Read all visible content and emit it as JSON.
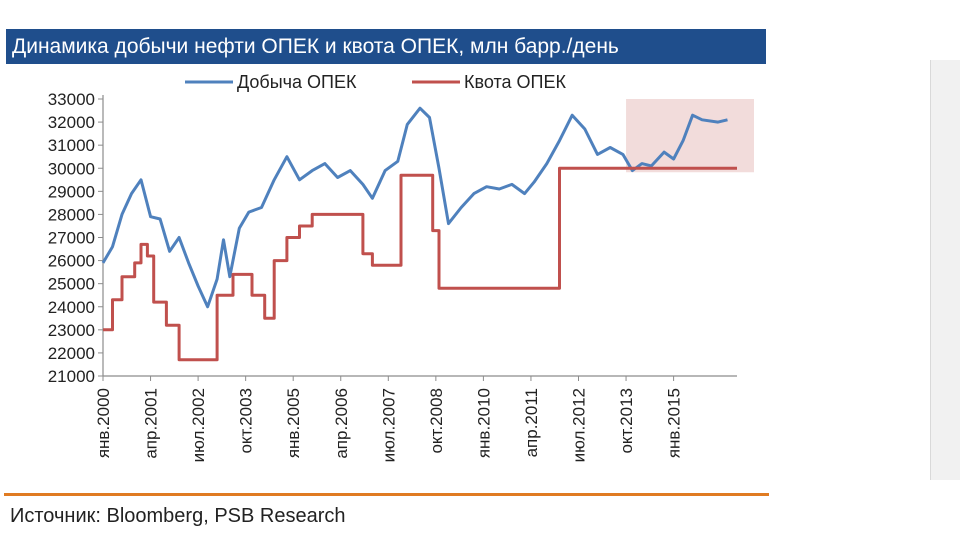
{
  "title": "Динамика добычи нефти ОПЕК и квота ОПЕК, млн барр./день",
  "source": "Источник: Bloomberg, PSB Research",
  "colors": {
    "title_bg": "#1f4e8c",
    "production": "#4f81bd",
    "quota": "#c0504d",
    "highlight": "#f2dcdb",
    "rule": "#e07b22"
  },
  "chart_data": {
    "type": "line",
    "title": "Динамика добычи нефти ОПЕК и квота ОПЕК, млн барр./день",
    "xlabel": "",
    "ylabel": "",
    "ylim": [
      21000,
      33000
    ],
    "xlim": [
      "2000-01",
      "2016-09"
    ],
    "yticks": [
      21000,
      22000,
      23000,
      24000,
      25000,
      26000,
      27000,
      28000,
      29000,
      30000,
      31000,
      32000,
      33000
    ],
    "xticks": [
      {
        "date": "2000-01",
        "label": "янв.2000"
      },
      {
        "date": "2001-04",
        "label": "апр.2001"
      },
      {
        "date": "2002-07",
        "label": "июл.2002"
      },
      {
        "date": "2003-10",
        "label": "окт.2003"
      },
      {
        "date": "2005-01",
        "label": "янв.2005"
      },
      {
        "date": "2006-04",
        "label": "апр.2006"
      },
      {
        "date": "2007-07",
        "label": "июл.2007"
      },
      {
        "date": "2008-10",
        "label": "окт.2008"
      },
      {
        "date": "2010-01",
        "label": "янв.2010"
      },
      {
        "date": "2011-04",
        "label": "апр.2011"
      },
      {
        "date": "2012-07",
        "label": "июл.2012"
      },
      {
        "date": "2013-10",
        "label": "окт.2013"
      },
      {
        "date": "2015-01",
        "label": "янв.2015"
      }
    ],
    "legend_position": "top",
    "grid": false,
    "highlight_region": {
      "x": [
        "2013-10",
        "2016-10"
      ],
      "y": [
        30000,
        33000
      ]
    },
    "series": [
      {
        "name": "Добыча ОПЕК",
        "color": "#4f81bd",
        "points": [
          [
            "2000-01",
            25900
          ],
          [
            "2000-04",
            26600
          ],
          [
            "2000-07",
            28000
          ],
          [
            "2000-10",
            28900
          ],
          [
            "2001-01",
            29500
          ],
          [
            "2001-04",
            27900
          ],
          [
            "2001-07",
            27800
          ],
          [
            "2001-10",
            26400
          ],
          [
            "2002-01",
            27000
          ],
          [
            "2002-04",
            25900
          ],
          [
            "2002-07",
            24900
          ],
          [
            "2002-10",
            24000
          ],
          [
            "2003-01",
            25200
          ],
          [
            "2003-03",
            26900
          ],
          [
            "2003-05",
            25300
          ],
          [
            "2003-08",
            27400
          ],
          [
            "2003-11",
            28100
          ],
          [
            "2004-03",
            28300
          ],
          [
            "2004-07",
            29500
          ],
          [
            "2004-11",
            30500
          ],
          [
            "2005-03",
            29500
          ],
          [
            "2005-07",
            29900
          ],
          [
            "2005-11",
            30200
          ],
          [
            "2006-03",
            29600
          ],
          [
            "2006-07",
            29900
          ],
          [
            "2006-11",
            29300
          ],
          [
            "2007-02",
            28700
          ],
          [
            "2007-06",
            29900
          ],
          [
            "2007-10",
            30300
          ],
          [
            "2008-01",
            31900
          ],
          [
            "2008-05",
            32600
          ],
          [
            "2008-08",
            32200
          ],
          [
            "2008-11",
            30000
          ],
          [
            "2009-02",
            27600
          ],
          [
            "2009-06",
            28300
          ],
          [
            "2009-10",
            28900
          ],
          [
            "2010-02",
            29200
          ],
          [
            "2010-06",
            29100
          ],
          [
            "2010-10",
            29300
          ],
          [
            "2011-02",
            28900
          ],
          [
            "2011-05",
            29400
          ],
          [
            "2011-09",
            30200
          ],
          [
            "2012-01",
            31200
          ],
          [
            "2012-05",
            32300
          ],
          [
            "2012-09",
            31700
          ],
          [
            "2013-01",
            30600
          ],
          [
            "2013-05",
            30900
          ],
          [
            "2013-09",
            30600
          ],
          [
            "2013-12",
            29900
          ],
          [
            "2014-03",
            30200
          ],
          [
            "2014-06",
            30100
          ],
          [
            "2014-10",
            30700
          ],
          [
            "2015-01",
            30400
          ],
          [
            "2015-04",
            31200
          ],
          [
            "2015-07",
            32300
          ],
          [
            "2015-10",
            32100
          ],
          [
            "2016-03",
            32000
          ],
          [
            "2016-06",
            32100
          ]
        ]
      },
      {
        "name": "Квота ОПЕК",
        "color": "#c0504d",
        "steps": [
          [
            "2000-01",
            23000
          ],
          [
            "2000-04",
            24300
          ],
          [
            "2000-07",
            25300
          ],
          [
            "2000-11",
            25900
          ],
          [
            "2001-01",
            26700
          ],
          [
            "2001-03",
            26200
          ],
          [
            "2001-05",
            24200
          ],
          [
            "2001-09",
            23200
          ],
          [
            "2002-01",
            21700
          ],
          [
            "2003-01",
            24500
          ],
          [
            "2003-06",
            25400
          ],
          [
            "2003-12",
            24500
          ],
          [
            "2004-04",
            23500
          ],
          [
            "2004-07",
            26000
          ],
          [
            "2004-11",
            27000
          ],
          [
            "2005-03",
            27500
          ],
          [
            "2005-07",
            28000
          ],
          [
            "2006-11",
            26300
          ],
          [
            "2007-02",
            25800
          ],
          [
            "2007-11",
            29700
          ],
          [
            "2008-09",
            27300
          ],
          [
            "2008-11",
            24800
          ],
          [
            "2012-01",
            30000
          ],
          [
            "2016-09",
            30000
          ]
        ]
      }
    ]
  }
}
